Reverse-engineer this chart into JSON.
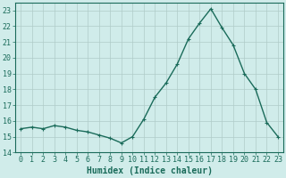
{
  "x": [
    0,
    1,
    2,
    3,
    4,
    5,
    6,
    7,
    8,
    9,
    10,
    11,
    12,
    13,
    14,
    15,
    16,
    17,
    18,
    19,
    20,
    21,
    22,
    23
  ],
  "y": [
    15.5,
    15.6,
    15.5,
    15.7,
    15.6,
    15.4,
    15.3,
    15.1,
    14.9,
    14.6,
    15.0,
    16.1,
    17.5,
    18.4,
    19.6,
    21.2,
    22.2,
    23.1,
    21.9,
    20.8,
    19.0,
    18.0,
    15.9,
    15.0
  ],
  "line_color": "#1a6b5a",
  "marker": "+",
  "marker_size": 3,
  "bg_color": "#d0ecea",
  "grid_color": "#b0ccc8",
  "xlabel": "Humidex (Indice chaleur)",
  "xlim": [
    -0.5,
    23.5
  ],
  "ylim": [
    14,
    23.5
  ],
  "yticks": [
    14,
    15,
    16,
    17,
    18,
    19,
    20,
    21,
    22,
    23
  ],
  "xticks": [
    0,
    1,
    2,
    3,
    4,
    5,
    6,
    7,
    8,
    9,
    10,
    11,
    12,
    13,
    14,
    15,
    16,
    17,
    18,
    19,
    20,
    21,
    22,
    23
  ],
  "tick_color": "#1a6b5a",
  "label_fontsize": 6,
  "xlabel_fontsize": 7,
  "linewidth": 1.0,
  "markeredgewidth": 0.8
}
